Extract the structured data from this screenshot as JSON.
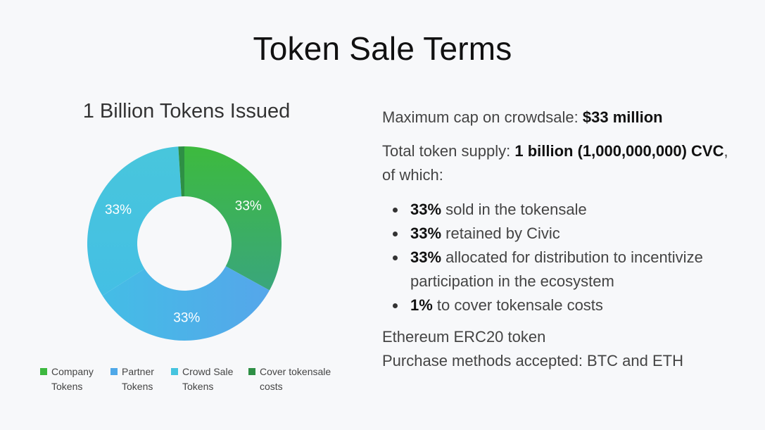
{
  "header": {
    "title": "Token Sale Terms"
  },
  "chart_data": {
    "type": "pie",
    "variant": "donut",
    "title": "1 Billion Tokens Issued",
    "categories": [
      "Company Tokens",
      "Partner Tokens",
      "Crowd Sale Tokens",
      "Cover tokensale costs"
    ],
    "values": [
      33,
      33,
      33,
      1
    ],
    "slice_labels": [
      "33%",
      "33%",
      "33%",
      ""
    ],
    "colors": [
      "#3db83f",
      "#4fa8e8",
      "#46c4df",
      "#2e8f45"
    ],
    "legend_position": "bottom"
  },
  "legend": [
    {
      "label": "Company\nTokens",
      "color": "#3db83f"
    },
    {
      "label": "Partner\nTokens",
      "color": "#4fa8e8"
    },
    {
      "label": "Crowd Sale\nTokens",
      "color": "#46c4df"
    },
    {
      "label": "Cover tokensale\ncosts",
      "color": "#2e8f45"
    }
  ],
  "info": {
    "cap_prefix": "Maximum cap on crowdsale: ",
    "cap_value": "$33 million",
    "supply_prefix": "Total token supply: ",
    "supply_value": "1 billion (1,000,000,000) CVC",
    "supply_suffix": ", of which:",
    "bullets": [
      {
        "bold": "33%",
        "text": " sold in the tokensale"
      },
      {
        "bold": "33%",
        "text": " retained by Civic"
      },
      {
        "bold": "33%",
        "text": " allocated for distribution to incentivize participation in the ecosystem"
      },
      {
        "bold": "1%",
        "text": " to cover tokensale costs"
      }
    ],
    "token_type": "Ethereum ERC20 token",
    "purchase_methods": "Purchase methods accepted: BTC and ETH"
  }
}
